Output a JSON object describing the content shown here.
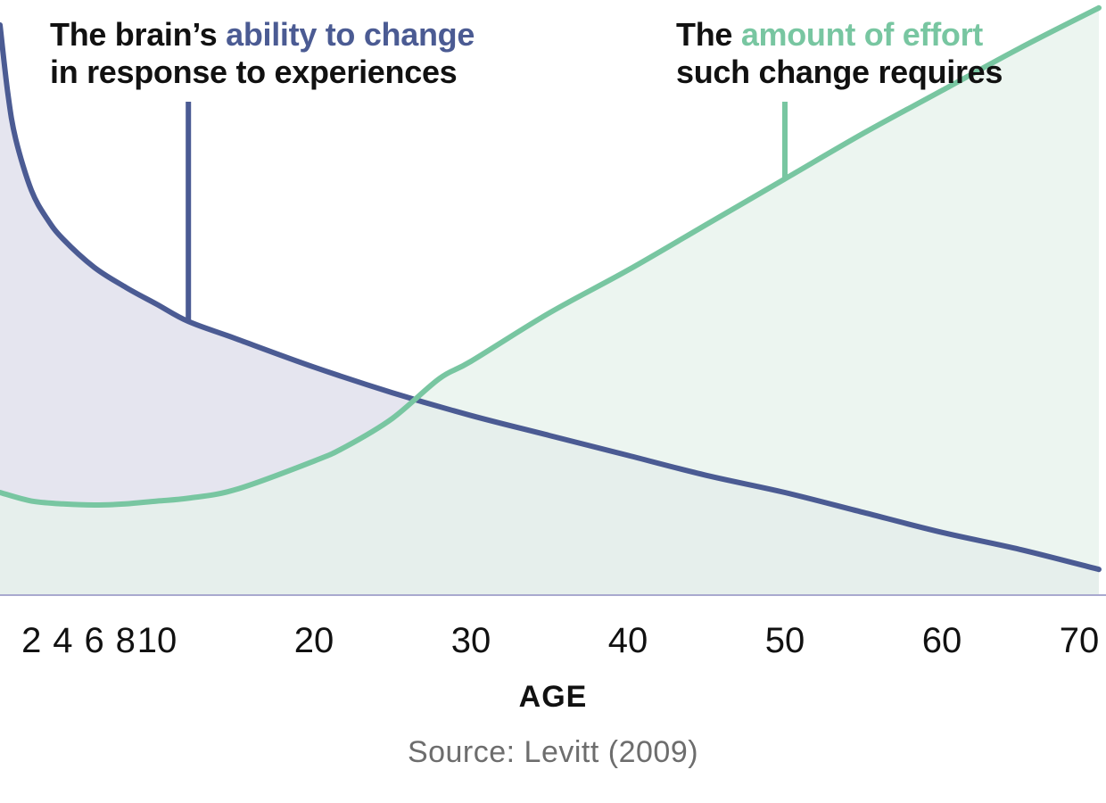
{
  "chart_data": {
    "type": "area",
    "x_ticks": [
      2,
      4,
      6,
      8,
      10,
      20,
      30,
      40,
      50,
      60,
      70
    ],
    "xlim": [
      0,
      70
    ],
    "ylim": [
      0,
      10
    ],
    "xlabel": "AGE",
    "source": "Source: Levitt (2009)",
    "grid": false,
    "legend": "none",
    "series": [
      {
        "name": "ability to change",
        "color": "#4b5b93",
        "fill": "#dcdce9",
        "x": [
          0,
          0.5,
          1,
          2,
          3,
          4,
          6,
          8,
          10,
          12,
          15,
          20,
          25,
          30,
          35,
          40,
          45,
          50,
          55,
          60,
          65,
          70
        ],
        "y": [
          10.0,
          8.8,
          8.0,
          7.1,
          6.6,
          6.25,
          5.75,
          5.4,
          5.1,
          4.8,
          4.5,
          4.0,
          3.55,
          3.15,
          2.8,
          2.45,
          2.1,
          1.8,
          1.45,
          1.1,
          0.8,
          0.45
        ]
      },
      {
        "name": "amount of effort",
        "color": "#78c6a1",
        "fill": "#e5f1eb",
        "x": [
          0,
          2,
          4,
          6,
          8,
          10,
          12,
          15,
          20,
          22,
          25,
          28,
          30,
          35,
          40,
          45,
          50,
          55,
          60,
          65,
          70
        ],
        "y": [
          1.8,
          1.65,
          1.6,
          1.58,
          1.6,
          1.65,
          1.7,
          1.85,
          2.35,
          2.6,
          3.1,
          3.8,
          4.1,
          4.95,
          5.7,
          6.5,
          7.3,
          8.1,
          8.85,
          9.6,
          10.3
        ]
      }
    ],
    "annotations": [
      {
        "id": "ability",
        "pre": "The brain’s ",
        "highlight": "ability to change",
        "line2": "in response to experiences",
        "highlight_color": "#4b5b93",
        "points_to_age": 12
      },
      {
        "id": "effort",
        "pre": "The ",
        "highlight": "amount of effort",
        "line2": "such change requires",
        "highlight_color": "#78c6a1",
        "points_to_age": 50
      }
    ]
  }
}
